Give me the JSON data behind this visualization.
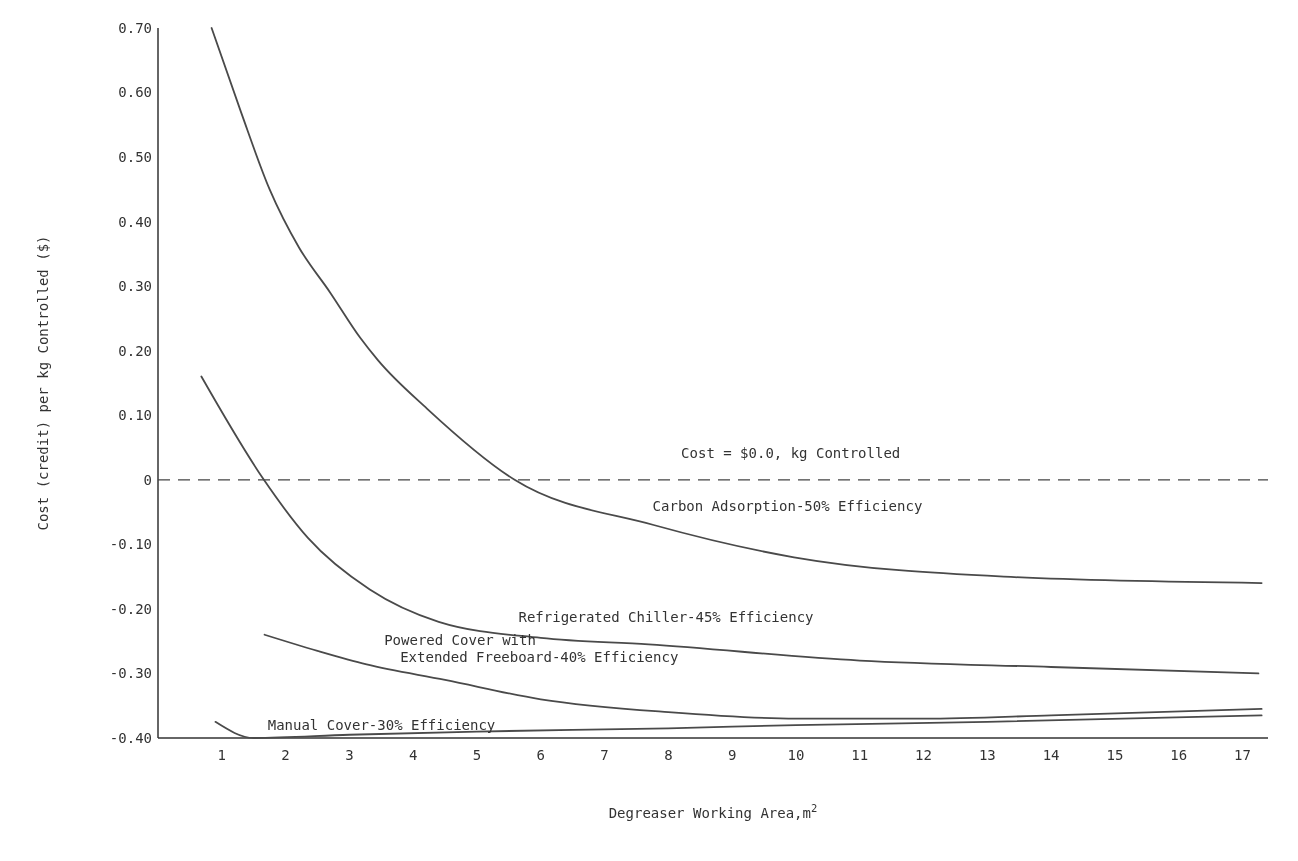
{
  "chart_data": {
    "type": "line",
    "xlabel": "Degreaser Working Area,m$^{2}$",
    "ylabel": "Cost (credit) per kg Controlled ($)",
    "xlim": [
      0,
      17.4
    ],
    "xticks": [
      1,
      2,
      3,
      4,
      5,
      6,
      7,
      8,
      9,
      10,
      11,
      12,
      13,
      14,
      15,
      16,
      17
    ],
    "ylim": [
      -0.4,
      0.7
    ],
    "yticks": [
      {
        "value": 0.7,
        "label": "0.70"
      },
      {
        "value": 0.6,
        "label": "0.60"
      },
      {
        "value": 0.5,
        "label": "0.50"
      },
      {
        "value": 0.4,
        "label": "0.40"
      },
      {
        "value": 0.3,
        "label": "0.30"
      },
      {
        "value": 0.2,
        "label": "0.20"
      },
      {
        "value": 0.1,
        "label": "0.10"
      },
      0,
      {
        "value": -0.1,
        "label": "-0.10"
      },
      {
        "value": -0.2,
        "label": "-0.20"
      },
      {
        "value": -0.3,
        "label": "-0.30"
      },
      {
        "value": -0.4,
        "label": "-0.40"
      }
    ],
    "grid": false,
    "marker": "none",
    "line_style": "solid",
    "ref_lines": [
      {
        "axis": "y",
        "value": 0,
        "label": "Cost = $0.0, kg Controlled",
        "line_style": "dashed",
        "color": "#444444"
      }
    ],
    "series": [
      {
        "name": "Carbon Adsorption-50% Efficiency",
        "color": "#4a4a4a",
        "x": [
          0.84,
          1.3,
          1.75,
          2.21,
          2.7,
          3.17,
          3.45,
          4.22,
          5.59,
          7.77,
          9.97,
          13.26,
          17.3
        ],
        "values": [
          0.7,
          0.57,
          0.45,
          0.36,
          0.29,
          0.22,
          0.185,
          0.11,
          0.0,
          -0.07,
          -0.12,
          -0.15,
          -0.16
        ]
      },
      {
        "name": "Refrigerated Chiller-45% Efficiency",
        "color": "#4a4a4a",
        "x": [
          0.68,
          1.66,
          2.35,
          3.32,
          4.4,
          6,
          7.69,
          11,
          14,
          17.25
        ],
        "values": [
          0.16,
          0.0,
          -0.09,
          -0.17,
          -0.22,
          -0.245,
          -0.255,
          -0.28,
          -0.29,
          -0.3
        ]
      },
      {
        "name": "Powered Cover with Extended Freeboard-40% Efficiency",
        "color": "#4a4a4a",
        "x": [
          1.67,
          2.5,
          3.27,
          4.5,
          6,
          8,
          10,
          12,
          14,
          17.3
        ],
        "values": [
          -0.24,
          -0.265,
          -0.286,
          -0.31,
          -0.34,
          -0.36,
          -0.37,
          -0.37,
          -0.365,
          -0.355
        ]
      },
      {
        "name": "Manual Cover-30% Efficiency",
        "color": "#4a4a4a",
        "x": [
          0.9,
          1.5,
          3,
          5,
          8,
          10,
          13,
          17.3
        ],
        "values": [
          -0.375,
          -0.4,
          -0.395,
          -0.39,
          -0.385,
          -0.38,
          -0.375,
          -0.365
        ]
      }
    ]
  }
}
